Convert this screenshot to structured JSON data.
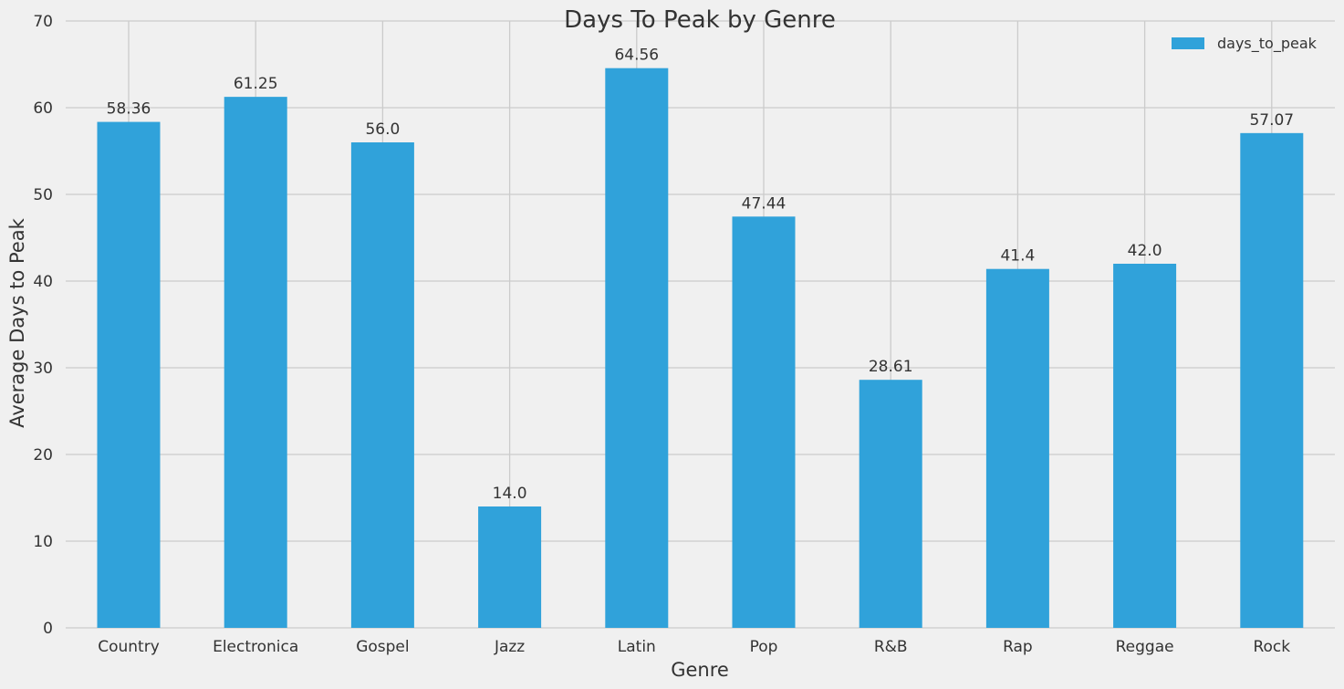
{
  "chart_data": {
    "type": "bar",
    "title": "Days To Peak by Genre",
    "xlabel": "Genre",
    "ylabel": "Average Days to Peak",
    "categories": [
      "Country",
      "Electronica",
      "Gospel",
      "Jazz",
      "Latin",
      "Pop",
      "R&B",
      "Rap",
      "Reggae",
      "Rock"
    ],
    "series": [
      {
        "name": "days_to_peak",
        "values": [
          58.36,
          61.25,
          56.0,
          14.0,
          64.56,
          47.44,
          28.61,
          41.4,
          42.0,
          57.07
        ],
        "labels": [
          "58.36",
          "61.25",
          "56.0",
          "14.0",
          "64.56",
          "47.44",
          "28.61",
          "41.4",
          "42.0",
          "57.07"
        ]
      }
    ],
    "ylim": [
      0,
      70
    ],
    "yticks": [
      0,
      10,
      20,
      30,
      40,
      50,
      60,
      70
    ],
    "grid": true,
    "legend_position": "top-right",
    "colors": {
      "bar": "#30a2da",
      "background": "#f0f0f0",
      "grid": "#cbcbcb",
      "text": "#333333"
    }
  }
}
